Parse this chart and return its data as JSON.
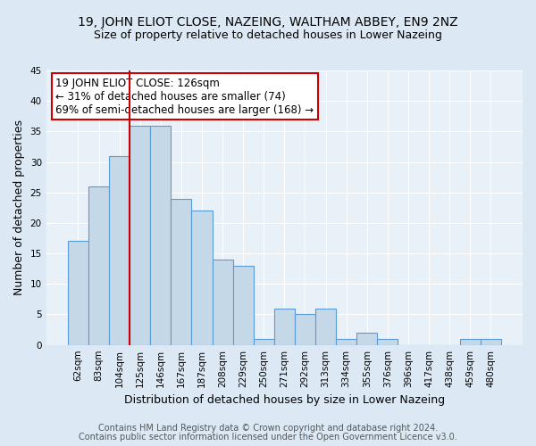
{
  "title": "19, JOHN ELIOT CLOSE, NAZEING, WALTHAM ABBEY, EN9 2NZ",
  "subtitle": "Size of property relative to detached houses in Lower Nazeing",
  "xlabel": "Distribution of detached houses by size in Lower Nazeing",
  "ylabel": "Number of detached properties",
  "categories": [
    "62sqm",
    "83sqm",
    "104sqm",
    "125sqm",
    "146sqm",
    "167sqm",
    "187sqm",
    "208sqm",
    "229sqm",
    "250sqm",
    "271sqm",
    "292sqm",
    "313sqm",
    "334sqm",
    "355sqm",
    "376sqm",
    "396sqm",
    "417sqm",
    "438sqm",
    "459sqm",
    "480sqm"
  ],
  "values": [
    17,
    26,
    31,
    36,
    36,
    24,
    22,
    14,
    13,
    1,
    6,
    5,
    6,
    1,
    2,
    1,
    0,
    0,
    0,
    1,
    1
  ],
  "bar_color": "#c5d8e8",
  "bar_edge_color": "#5b9bd5",
  "bar_edge_width": 0.8,
  "property_line_color": "#cc0000",
  "annotation_text": "19 JOHN ELIOT CLOSE: 126sqm\n← 31% of detached houses are smaller (74)\n69% of semi-detached houses are larger (168) →",
  "annotation_box_color": "#cc0000",
  "ylim": [
    0,
    45
  ],
  "yticks": [
    0,
    5,
    10,
    15,
    20,
    25,
    30,
    35,
    40,
    45
  ],
  "footer1": "Contains HM Land Registry data © Crown copyright and database right 2024.",
  "footer2": "Contains public sector information licensed under the Open Government Licence v3.0.",
  "bg_color": "#dce9f5",
  "plot_bg_color": "#e8f0f8",
  "grid_color": "#ffffff",
  "title_fontsize": 10,
  "subtitle_fontsize": 9,
  "xlabel_fontsize": 9,
  "ylabel_fontsize": 9,
  "tick_fontsize": 7.5,
  "footer_fontsize": 7,
  "annotation_fontsize": 8.5,
  "prop_line_bar_index": 3
}
